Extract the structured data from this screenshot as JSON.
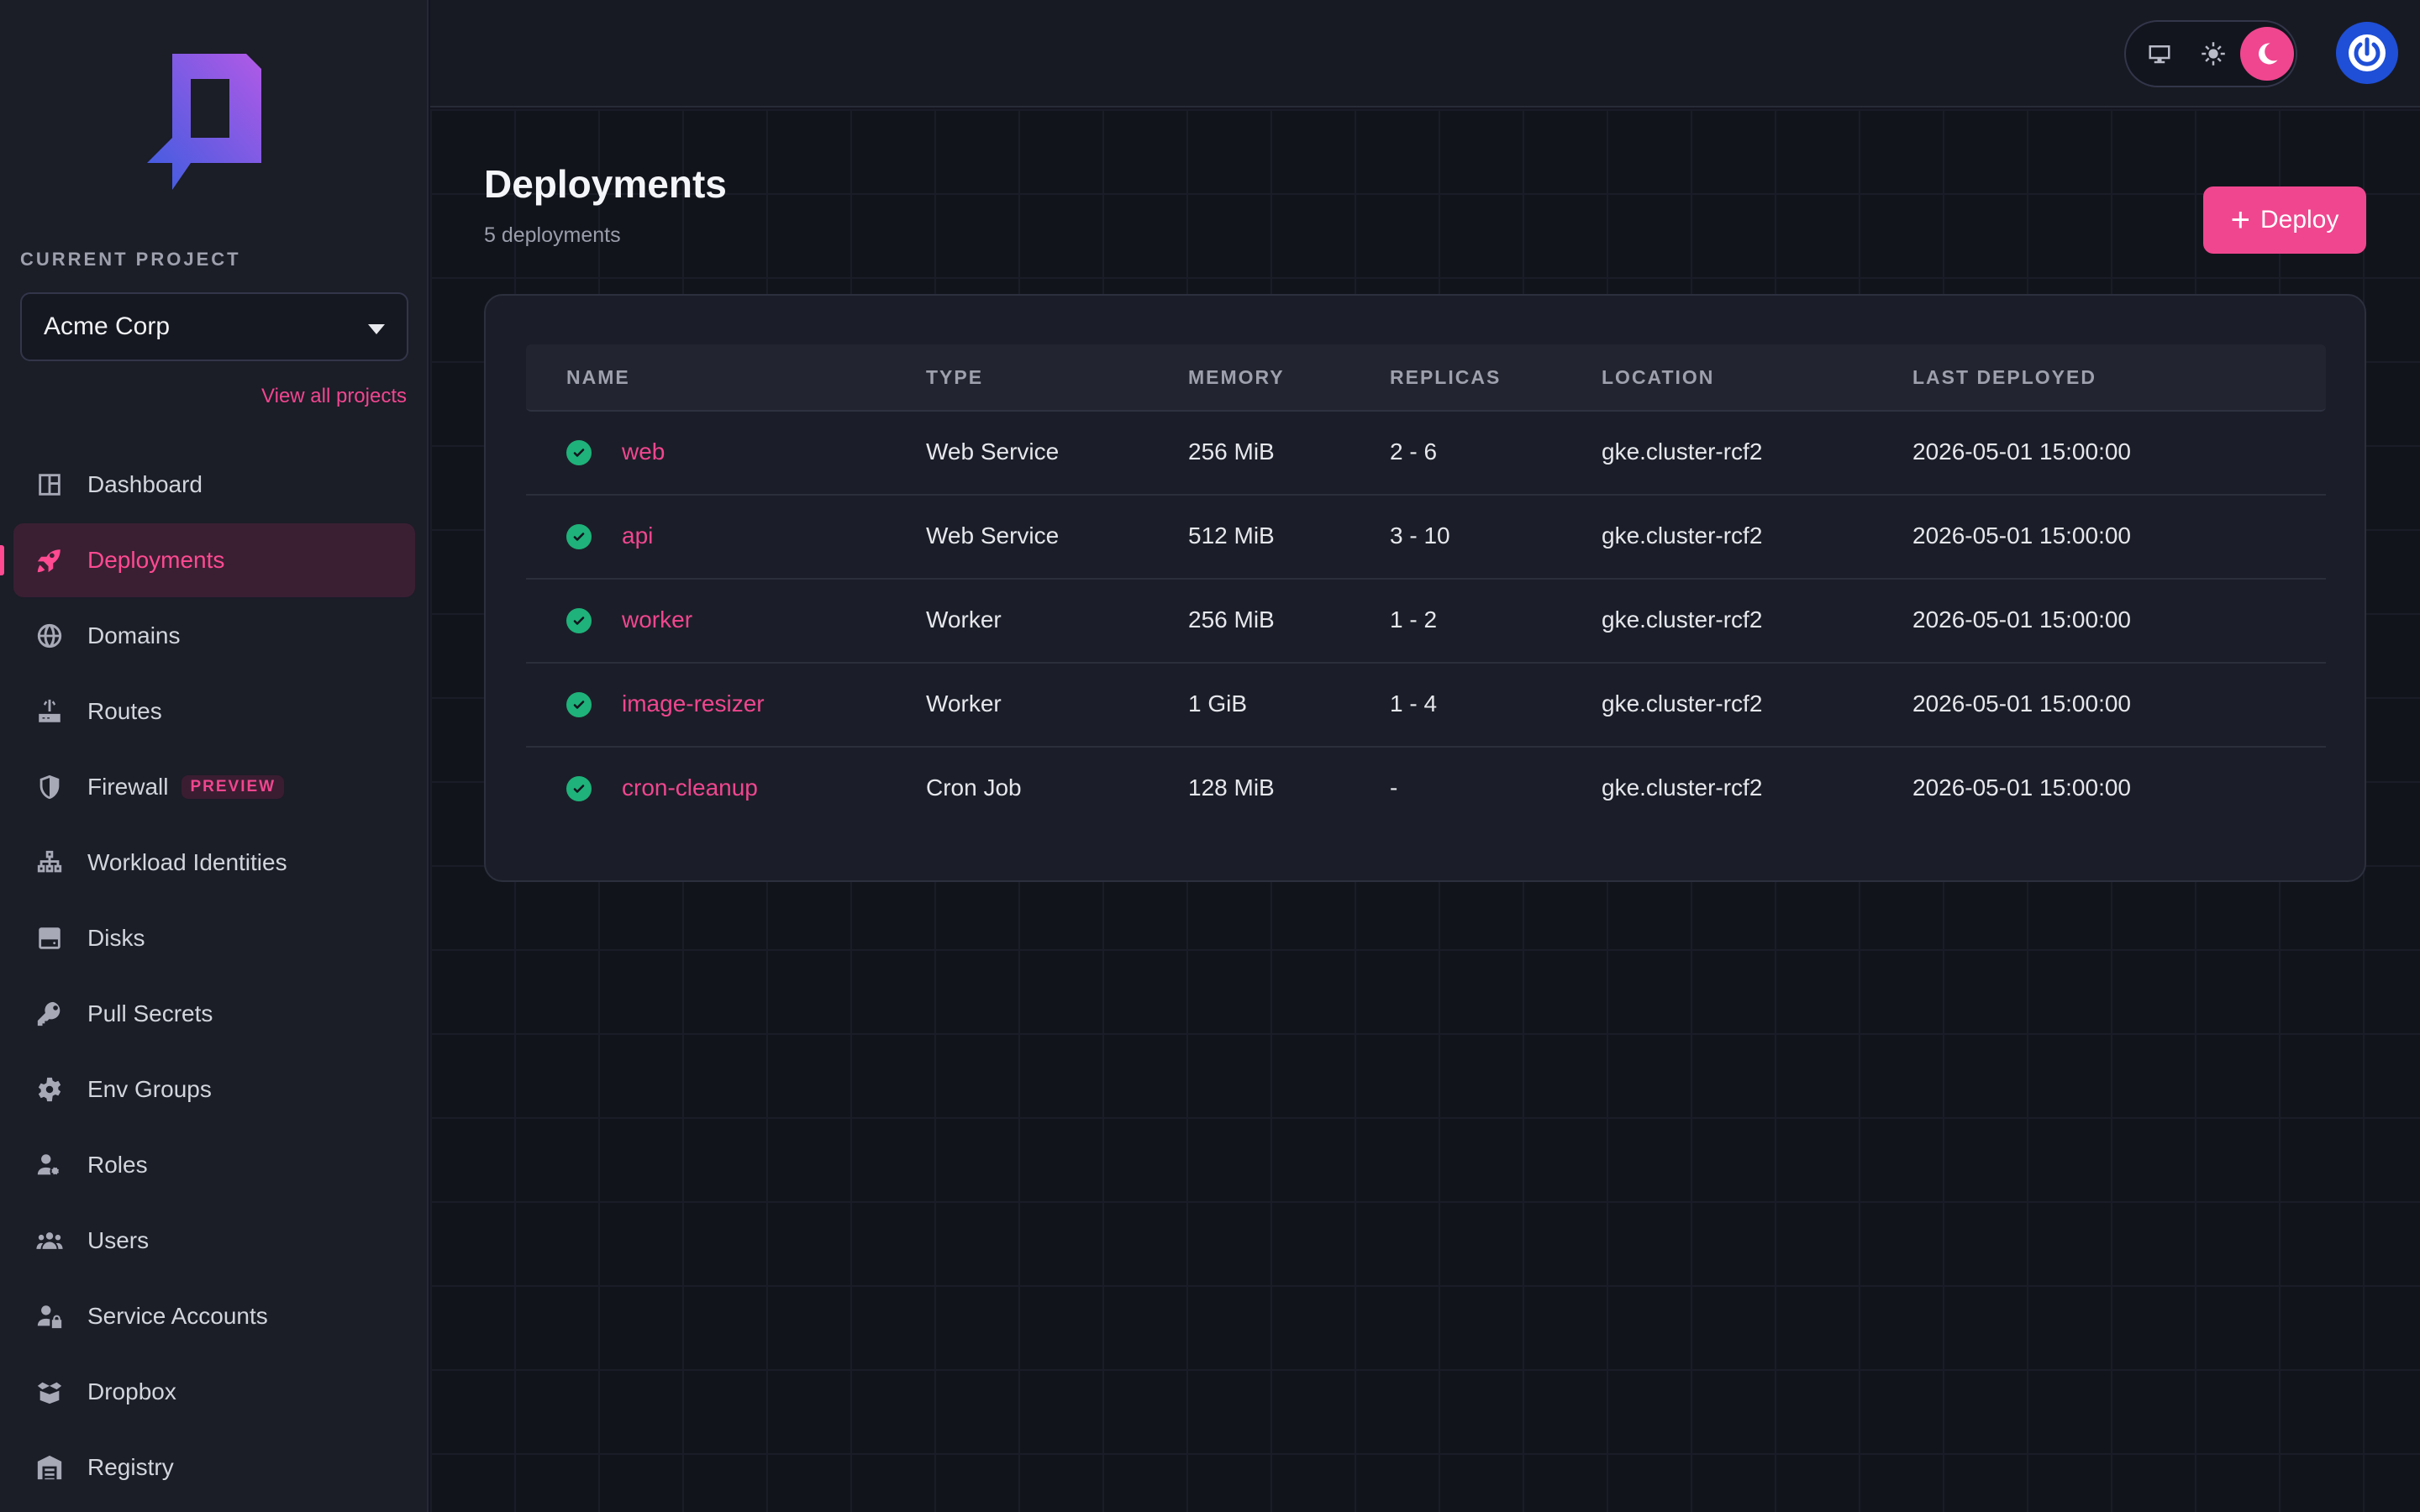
{
  "sidebar": {
    "project_label": "CURRENT PROJECT",
    "project_name": "Acme Corp",
    "view_all": "View all projects",
    "items": [
      {
        "label": "Dashboard",
        "icon": "dashboard-icon"
      },
      {
        "label": "Deployments",
        "icon": "rocket-icon",
        "active": true
      },
      {
        "label": "Domains",
        "icon": "globe-icon"
      },
      {
        "label": "Routes",
        "icon": "router-icon"
      },
      {
        "label": "Firewall",
        "icon": "shield-icon",
        "badge": "PREVIEW"
      },
      {
        "label": "Workload Identities",
        "icon": "network-icon"
      },
      {
        "label": "Disks",
        "icon": "disk-icon"
      },
      {
        "label": "Pull Secrets",
        "icon": "key-icon"
      },
      {
        "label": "Env Groups",
        "icon": "gear-icon"
      },
      {
        "label": "Roles",
        "icon": "user-gear-icon"
      },
      {
        "label": "Users",
        "icon": "users-icon"
      },
      {
        "label": "Service Accounts",
        "icon": "user-lock-icon"
      },
      {
        "label": "Dropbox",
        "icon": "box-open-icon"
      },
      {
        "label": "Registry",
        "icon": "warehouse-icon"
      }
    ]
  },
  "topbar": {
    "theme_options": [
      "desktop-icon",
      "sun-icon",
      "moon-icon"
    ],
    "theme_selected": "moon-icon",
    "user_icon": "power-icon"
  },
  "main": {
    "title": "Deployments",
    "subtitle": "5 deployments",
    "deploy_button": "Deploy",
    "table": {
      "headers": {
        "name": "NAME",
        "type": "TYPE",
        "memory": "MEMORY",
        "replicas": "REPLICAS",
        "location": "LOCATION",
        "last_deployed": "LAST DEPLOYED"
      },
      "rows": [
        {
          "name": "web",
          "type": "Web Service",
          "memory": "256 MiB",
          "replicas": "2 - 6",
          "location": "gke.cluster-rcf2",
          "last_deployed": "2026-05-01 15:00:00",
          "status": "success"
        },
        {
          "name": "api",
          "type": "Web Service",
          "memory": "512 MiB",
          "replicas": "3 - 10",
          "location": "gke.cluster-rcf2",
          "last_deployed": "2026-05-01 15:00:00",
          "status": "success"
        },
        {
          "name": "worker",
          "type": "Worker",
          "memory": "256 MiB",
          "replicas": "1 - 2",
          "location": "gke.cluster-rcf2",
          "last_deployed": "2026-05-01 15:00:00",
          "status": "success"
        },
        {
          "name": "image-resizer",
          "type": "Worker",
          "memory": "1 GiB",
          "replicas": "1 - 4",
          "location": "gke.cluster-rcf2",
          "last_deployed": "2026-05-01 15:00:00",
          "status": "success"
        },
        {
          "name": "cron-cleanup",
          "type": "Cron Job",
          "memory": "128 MiB",
          "replicas": "-",
          "location": "gke.cluster-rcf2",
          "last_deployed": "2026-05-01 15:00:00",
          "status": "success"
        }
      ]
    }
  },
  "colors": {
    "accent": "#f0468f",
    "success": "#1fb27a",
    "sidebar_bg": "#1b1d27",
    "main_bg": "#12141c"
  }
}
